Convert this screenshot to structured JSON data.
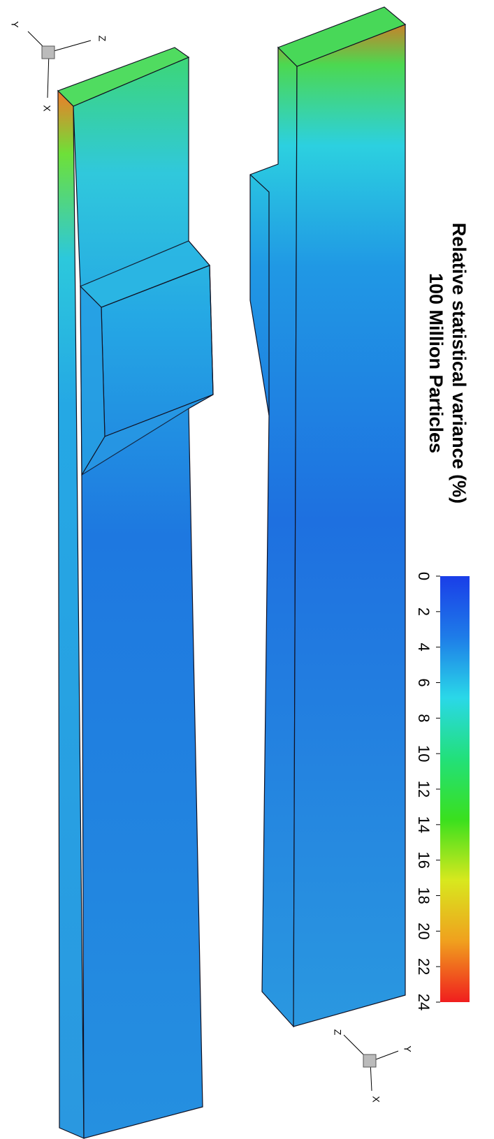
{
  "figure": {
    "title": "Relative statistical variance (%)",
    "subtitle": "100 Million Particles",
    "colorbar": {
      "lim": [
        0,
        24
      ],
      "ticks": [
        0,
        2,
        4,
        6,
        8,
        10,
        12,
        14,
        16,
        18,
        20,
        22,
        24
      ],
      "colors": [
        "#1a3ee8",
        "#1e7ce8",
        "#2ad8e8",
        "#22e07a",
        "#3ae01e",
        "#d8e81e",
        "#f0a01e",
        "#f01e1e"
      ]
    },
    "triads": [
      {
        "labels": [
          "Y",
          "Z",
          "X"
        ]
      },
      {
        "labels": [
          "Z",
          "Y",
          "X"
        ]
      }
    ]
  }
}
